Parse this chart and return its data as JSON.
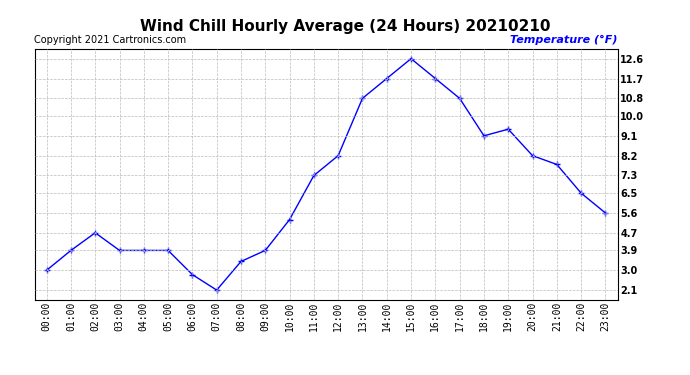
{
  "title": "Wind Chill Hourly Average (24 Hours) 20210210",
  "copyright_text": "Copyright 2021 Cartronics.com",
  "ylabel": "Temperature (°F)",
  "ylabel_color": "#0000ff",
  "hours": [
    "00:00",
    "01:00",
    "02:00",
    "03:00",
    "04:00",
    "05:00",
    "06:00",
    "07:00",
    "08:00",
    "09:00",
    "10:00",
    "11:00",
    "12:00",
    "13:00",
    "14:00",
    "15:00",
    "16:00",
    "17:00",
    "18:00",
    "19:00",
    "20:00",
    "21:00",
    "22:00",
    "23:00"
  ],
  "values": [
    3.0,
    3.9,
    4.7,
    3.9,
    3.9,
    3.9,
    2.8,
    2.1,
    3.4,
    3.9,
    5.3,
    7.3,
    8.2,
    10.8,
    11.7,
    12.6,
    11.7,
    10.8,
    9.1,
    9.4,
    8.2,
    7.8,
    6.5,
    5.6
  ],
  "line_color": "#0000ff",
  "marker": "+",
  "marker_size": 4,
  "yticks": [
    2.1,
    3.0,
    3.9,
    4.7,
    5.6,
    6.5,
    7.3,
    8.2,
    9.1,
    10.0,
    10.8,
    11.7,
    12.6
  ],
  "ylim": [
    1.65,
    13.05
  ],
  "background_color": "#ffffff",
  "grid_color": "#bbbbbb",
  "title_fontsize": 11,
  "axis_fontsize": 7,
  "copyright_fontsize": 7,
  "ylabel_fontsize": 8
}
